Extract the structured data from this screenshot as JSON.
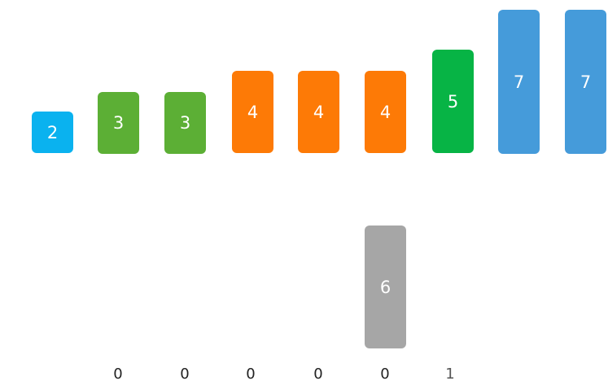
{
  "colors": {
    "value_2": "#0ab2ef",
    "value_3": "#5caf35",
    "value_4": "#fd7a06",
    "value_5": "#07b445",
    "value_6": "#a6a6a6",
    "value_7": "#459bda"
  },
  "array": [
    {
      "label": "2",
      "color_key": "value_2"
    },
    {
      "label": "3",
      "color_key": "value_3"
    },
    {
      "label": "3",
      "color_key": "value_3"
    },
    {
      "label": "4",
      "color_key": "value_4"
    },
    {
      "label": "4",
      "color_key": "value_4"
    },
    {
      "label": "4",
      "color_key": "value_4"
    },
    {
      "label": "5",
      "color_key": "value_5"
    },
    {
      "label": "7",
      "color_key": "value_7"
    },
    {
      "label": "7",
      "color_key": "value_7"
    }
  ],
  "current": {
    "label": "6",
    "color_key": "value_6"
  },
  "counts": [
    "0",
    "0",
    "0",
    "0",
    "0",
    "1"
  ]
}
